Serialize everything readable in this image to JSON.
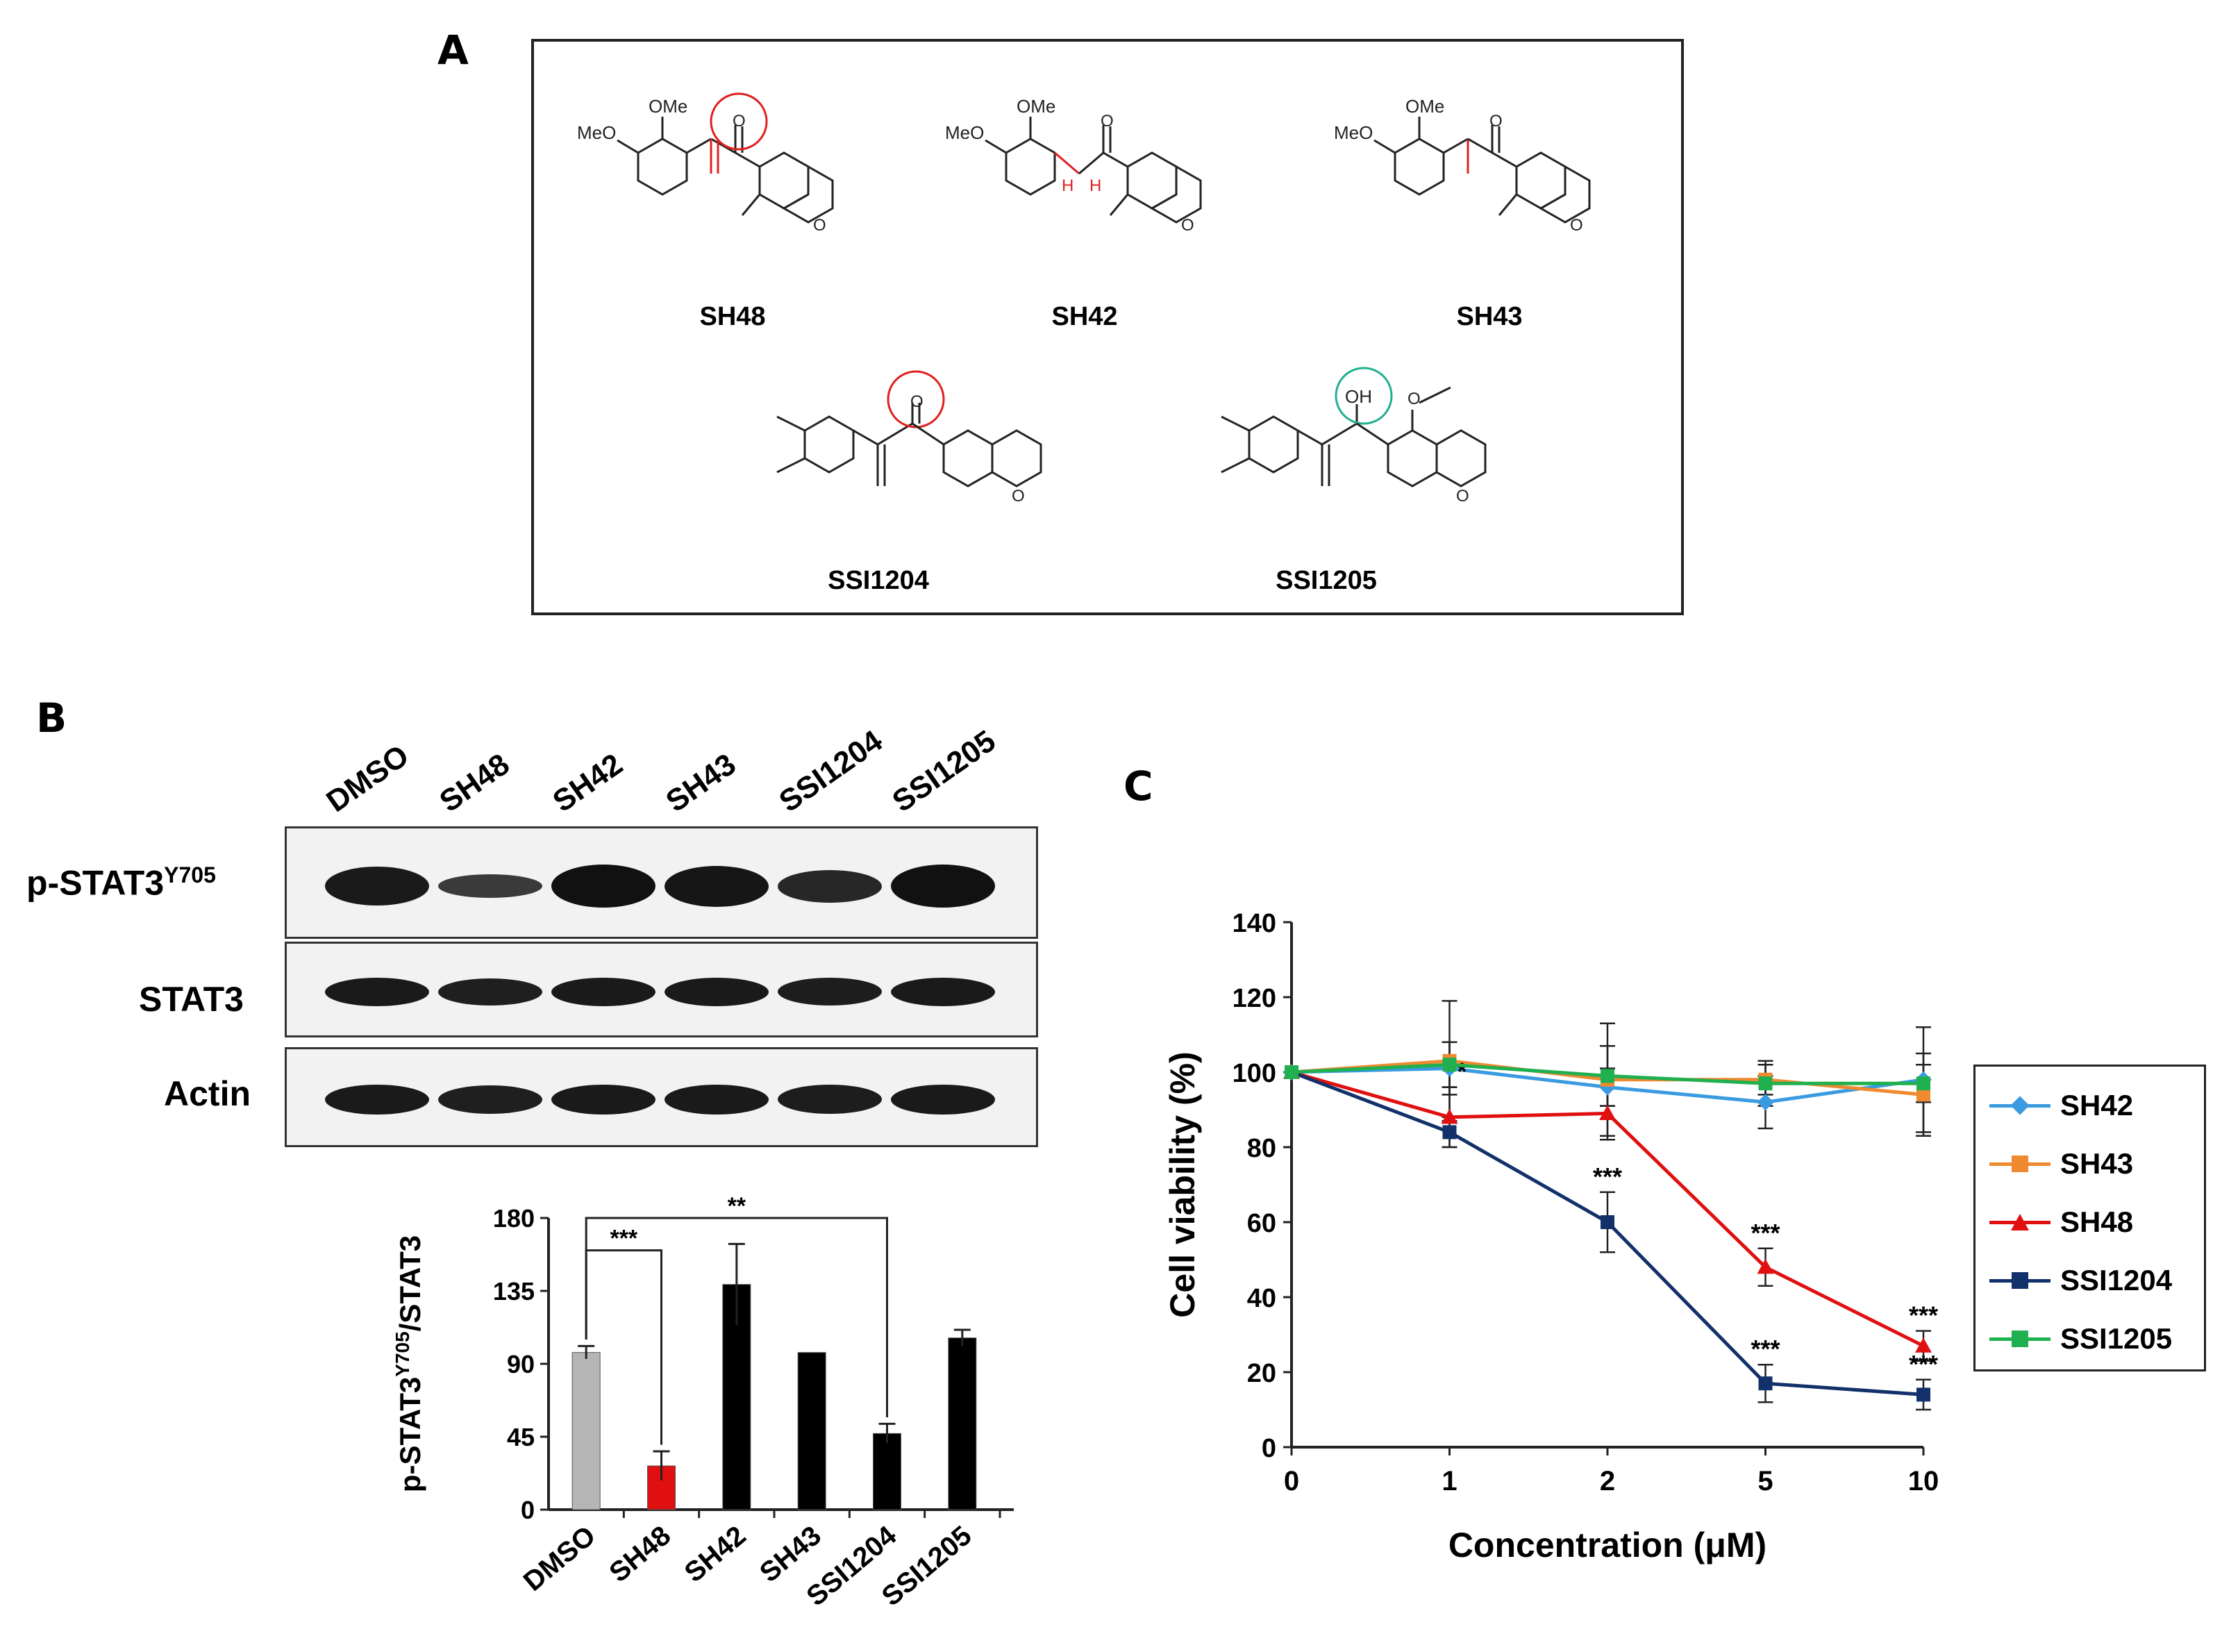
{
  "panels": {
    "a": "A",
    "b": "B",
    "c": "C"
  },
  "structures": {
    "compounds": [
      "SH48",
      "SH42",
      "SH43",
      "SSI1204",
      "SSI1205"
    ],
    "atom_labels": {
      "ome": "OMe",
      "meo": "MeO",
      "o": "O",
      "oh": "OH",
      "h": "H"
    }
  },
  "western_blot": {
    "lanes": [
      "DMSO",
      "SH48",
      "SH42",
      "SH43",
      "SSI1204",
      "SSI1205"
    ],
    "rows": [
      {
        "label_main": "p-STAT3",
        "label_sup": "Y705",
        "intensity": [
          0.9,
          0.55,
          1.0,
          0.95,
          0.75,
          1.0
        ]
      },
      {
        "label_main": "STAT3",
        "label_sup": "",
        "intensity": [
          0.9,
          0.85,
          0.9,
          0.9,
          0.88,
          0.9
        ]
      },
      {
        "label_main": "Actin",
        "label_sup": "",
        "intensity": [
          0.9,
          0.85,
          0.9,
          0.9,
          0.88,
          0.9
        ]
      }
    ]
  },
  "chart_data": [
    {
      "type": "bar",
      "ylabel_main": "p-STAT3",
      "ylabel_sup": "Y705",
      "ylabel_tail": "/STAT3",
      "categories": [
        "DMSO",
        "SH48",
        "SH42",
        "SH43",
        "SSI1204",
        "SSI1205"
      ],
      "values": [
        97,
        27,
        139,
        97,
        47,
        106
      ],
      "errors": [
        4,
        9,
        25,
        0,
        6,
        5
      ],
      "colors": [
        "#b5b5b5",
        "#e01010",
        "#000000",
        "#000000",
        "#000000",
        "#000000"
      ],
      "ylim": [
        0,
        180
      ],
      "yticks": [
        0,
        45,
        90,
        135,
        180
      ],
      "significance": [
        {
          "from": "DMSO",
          "to": "SH48",
          "label": "***"
        },
        {
          "from": "DMSO",
          "to": "SSI1204",
          "label": "**"
        }
      ]
    },
    {
      "type": "line",
      "xlabel": "Concentration  (μM)",
      "ylabel": "Cell viability  (%)",
      "x": [
        "0",
        "1",
        "2",
        "5",
        "10"
      ],
      "ylim": [
        0,
        140
      ],
      "yticks": [
        0,
        20,
        40,
        60,
        80,
        100,
        120,
        140
      ],
      "legend_position": "right",
      "series": [
        {
          "name": "SH42",
          "color": "#3a9be0",
          "marker": "diamond",
          "values": [
            100,
            101,
            96,
            92,
            98
          ],
          "errors": [
            0,
            7,
            5,
            7,
            14
          ]
        },
        {
          "name": "SH43",
          "color": "#f08a30",
          "marker": "square",
          "values": [
            100,
            103,
            98,
            98,
            94
          ],
          "errors": [
            0,
            16,
            15,
            4,
            11
          ]
        },
        {
          "name": "SH48",
          "color": "#e01010",
          "marker": "triangle",
          "values": [
            100,
            88,
            89,
            48,
            27
          ],
          "errors": [
            0,
            8,
            7,
            5,
            4
          ],
          "annotations": [
            "",
            "*",
            "",
            "***",
            "***"
          ]
        },
        {
          "name": "SSI1204",
          "color": "#12306a",
          "marker": "square",
          "values": [
            100,
            84,
            60,
            17,
            14
          ],
          "errors": [
            0,
            4,
            8,
            5,
            4
          ],
          "annotations": [
            "",
            "",
            "***",
            "***",
            "***"
          ]
        },
        {
          "name": "SSI1205",
          "color": "#20b050",
          "marker": "square",
          "values": [
            100,
            102,
            99,
            97,
            97
          ],
          "errors": [
            0,
            6,
            8,
            6,
            5
          ]
        }
      ]
    }
  ]
}
